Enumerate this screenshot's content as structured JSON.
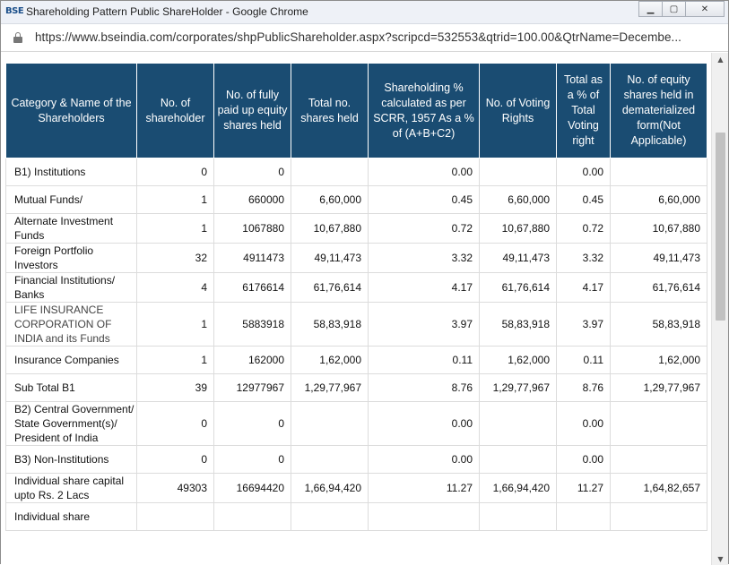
{
  "window": {
    "app_icon": "BSE",
    "title": "Shareholding Pattern Public ShareHolder - Google Chrome",
    "buttons": {
      "minimize": "▁",
      "maximize": "▢",
      "close": "✕"
    }
  },
  "address": {
    "url": "https://www.bseindia.com/corporates/shpPublicShareholder.aspx?scripcd=532553&qtrid=100.00&QtrName=Decembe..."
  },
  "table": {
    "headers": [
      "Category & Name of the Shareholders",
      "No. of shareholder",
      "No. of fully paid up equity shares held",
      "Total no. shares held",
      "Shareholding % calculated as per SCRR, 1957 As a % of (A+B+C2)",
      "No. of Voting Rights",
      "Total as a % of Total Voting right",
      "No. of equity shares held in dematerialized form(Not Applicable)"
    ],
    "rows": [
      {
        "cells": [
          "B1) Institutions",
          "0",
          "0",
          "",
          "0.00",
          "",
          "0.00",
          ""
        ]
      },
      {
        "cells": [
          "Mutual Funds/",
          "1",
          "660000",
          "6,60,000",
          "0.45",
          "6,60,000",
          "0.45",
          "6,60,000"
        ]
      },
      {
        "cells": [
          "Alternate Investment Funds",
          "1",
          "1067880",
          "10,67,880",
          "0.72",
          "10,67,880",
          "0.72",
          "10,67,880"
        ]
      },
      {
        "cells": [
          "Foreign Portfolio Investors",
          "32",
          "4911473",
          "49,11,473",
          "3.32",
          "49,11,473",
          "3.32",
          "49,11,473"
        ]
      },
      {
        "cells": [
          "Financial Institutions/ Banks",
          "4",
          "6176614",
          "61,76,614",
          "4.17",
          "61,76,614",
          "4.17",
          "61,76,614"
        ]
      },
      {
        "cells": [
          "LIFE INSURANCE CORPORATION OF INDIA and its Funds",
          "1",
          "5883918",
          "58,83,918",
          "3.97",
          "58,83,918",
          "3.97",
          "58,83,918"
        ],
        "light": true
      },
      {
        "cells": [
          "Insurance Companies",
          "1",
          "162000",
          "1,62,000",
          "0.11",
          "1,62,000",
          "0.11",
          "1,62,000"
        ]
      },
      {
        "cells": [
          "Sub Total B1",
          "39",
          "12977967",
          "1,29,77,967",
          "8.76",
          "1,29,77,967",
          "8.76",
          "1,29,77,967"
        ]
      },
      {
        "cells": [
          "B2) Central Government/ State Government(s)/ President of India",
          "0",
          "0",
          "",
          "0.00",
          "",
          "0.00",
          ""
        ]
      },
      {
        "cells": [
          "B3) Non-Institutions",
          "0",
          "0",
          "",
          "0.00",
          "",
          "0.00",
          ""
        ]
      },
      {
        "cells": [
          "Individual share capital upto Rs. 2 Lacs",
          "49303",
          "16694420",
          "1,66,94,420",
          "11.27",
          "1,66,94,420",
          "11.27",
          "1,64,82,657"
        ]
      },
      {
        "cells": [
          "Individual share",
          "",
          "",
          "",
          "",
          "",
          "",
          ""
        ]
      }
    ]
  },
  "scrollbar": {
    "up_arrow": "▲",
    "down_arrow": "▼"
  }
}
